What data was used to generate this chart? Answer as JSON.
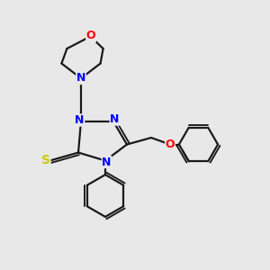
{
  "bg_color": "#e8e8e8",
  "bond_color": "#1a1a1a",
  "N_color": "#0000ff",
  "O_color": "#ff0000",
  "S_color": "#cccc00",
  "fig_size": [
    3.0,
    3.0
  ],
  "dpi": 100,
  "xlim": [
    0,
    10
  ],
  "ylim": [
    0,
    10
  ]
}
